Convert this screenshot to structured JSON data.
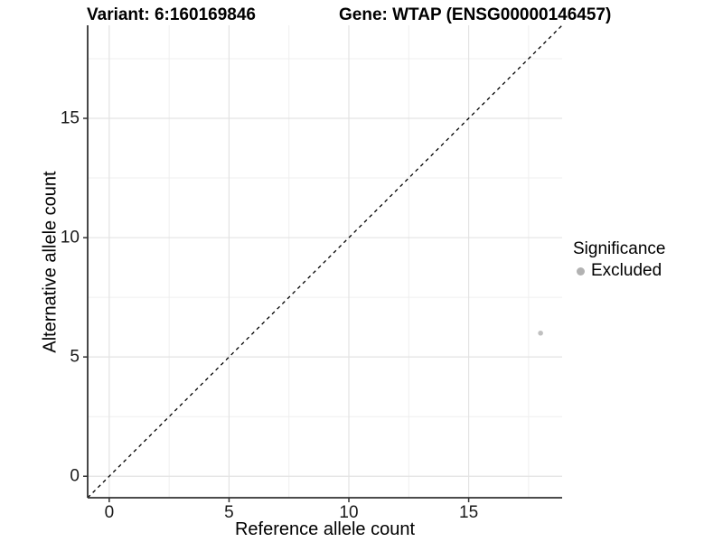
{
  "chart_data": {
    "type": "scatter",
    "title_left": "Variant: 6:160169846",
    "title_right": "Gene: WTAP (ENSG00000146457)",
    "xlabel": "Reference allele count",
    "ylabel": "Alternative allele count",
    "xlim": [
      -0.9,
      18.9
    ],
    "ylim": [
      -0.9,
      18.9
    ],
    "x_ticks": [
      0,
      5,
      10,
      15
    ],
    "y_ticks": [
      0,
      5,
      10,
      15
    ],
    "x_minor": [
      2.5,
      7.5,
      12.5,
      17.5
    ],
    "y_minor": [
      2.5,
      7.5,
      12.5,
      17.5
    ],
    "grid": true,
    "legend_position": "right",
    "legend": {
      "title": "Significance",
      "items": [
        {
          "label": "Excluded",
          "color": "#b2b2b2"
        }
      ]
    },
    "points": [
      {
        "x": 18,
        "y": 6,
        "series": "Excluded",
        "color": "#c0c0c0",
        "radius": 2.8
      }
    ],
    "reference_line": {
      "style": "dashed",
      "slope": 1,
      "intercept": 0,
      "from": [
        -0.9,
        -0.9
      ],
      "to": [
        18.9,
        18.9
      ],
      "color": "#000000"
    },
    "colors": {
      "grid_major": "#e3e3e3",
      "grid_minor": "#efefef",
      "axis_line": "#333333",
      "tick_mark": "#333333",
      "background": "#ffffff"
    }
  }
}
